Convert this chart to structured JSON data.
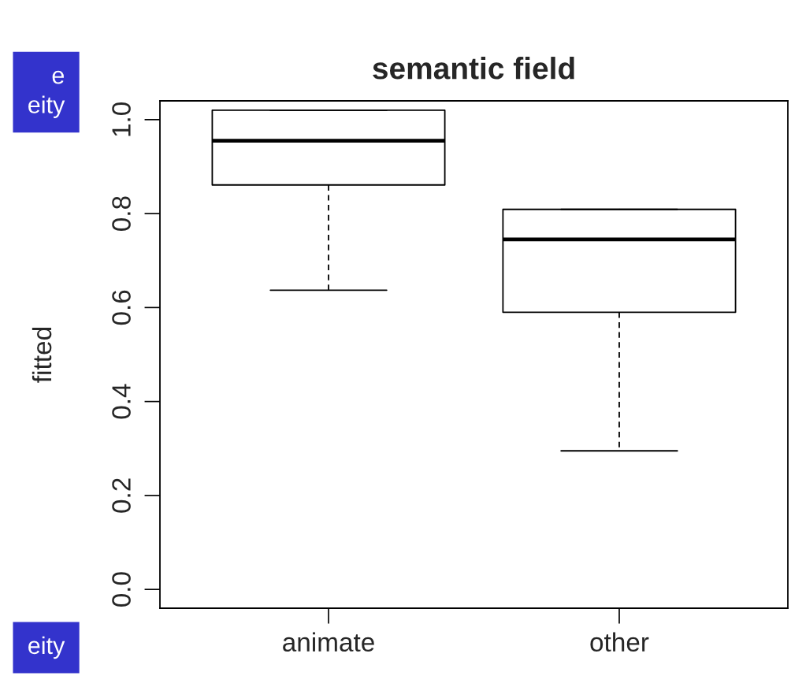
{
  "chart_data": {
    "type": "box",
    "title": "semantic field",
    "ylabel": "fitted",
    "categories": [
      "animate",
      "other"
    ],
    "boxes": [
      {
        "low": 0.637,
        "q1": 0.861,
        "median": 0.955,
        "q3": 1.02,
        "high": 1.02
      },
      {
        "low": 0.295,
        "q1": 0.59,
        "median": 0.745,
        "q3": 0.809,
        "high": 0.809
      }
    ],
    "ylim": [
      -0.04,
      1.04
    ],
    "yticks": [
      {
        "value": 0,
        "label": "0.0"
      },
      0.2,
      0.4,
      0.6,
      0.8,
      {
        "value": 1,
        "label": "1.0"
      }
    ],
    "annotations": [
      "e\neity",
      "eity"
    ]
  }
}
